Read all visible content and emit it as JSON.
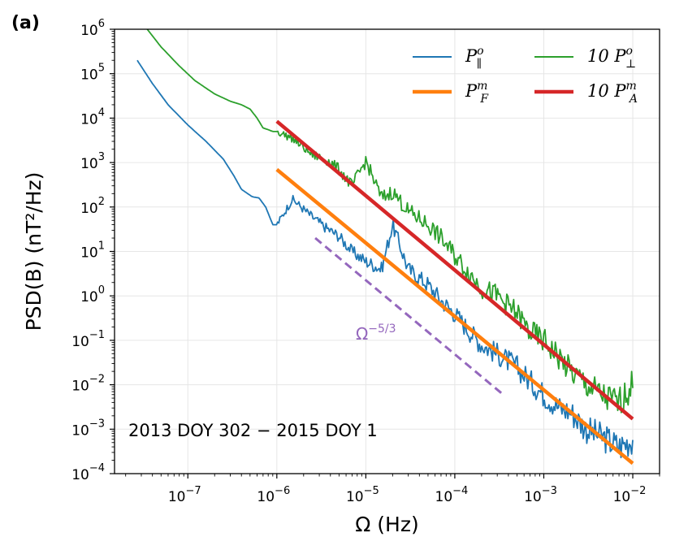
{
  "chart_data": {
    "type": "line",
    "panel_label": "(a)",
    "xlabel": "Ω (Hz)",
    "ylabel": "PSD(B) (nT²/Hz)",
    "x_scale": "log",
    "y_scale": "log",
    "xlim": [
      1.5e-08,
      0.02
    ],
    "ylim": [
      0.0001,
      1000000
    ],
    "grid": true,
    "legend_position": "top-right",
    "x_ticks": [
      {
        "value": 1e-07,
        "base": "10",
        "exp": "−7"
      },
      {
        "value": 1e-06,
        "base": "10",
        "exp": "−6"
      },
      {
        "value": 1e-05,
        "base": "10",
        "exp": "−5"
      },
      {
        "value": 0.0001,
        "base": "10",
        "exp": "−4"
      },
      {
        "value": 0.001,
        "base": "10",
        "exp": "−3"
      },
      {
        "value": 0.01,
        "base": "10",
        "exp": "−2"
      }
    ],
    "y_ticks": [
      {
        "value": 0.0001,
        "base": "10",
        "exp": "−4"
      },
      {
        "value": 0.001,
        "base": "10",
        "exp": "−3"
      },
      {
        "value": 0.01,
        "base": "10",
        "exp": "−2"
      },
      {
        "value": 0.1,
        "base": "10",
        "exp": "−1"
      },
      {
        "value": 1,
        "base": "10",
        "exp": "0"
      },
      {
        "value": 10,
        "base": "10",
        "exp": "1"
      },
      {
        "value": 100,
        "base": "10",
        "exp": "2"
      },
      {
        "value": 1000,
        "base": "10",
        "exp": "3"
      },
      {
        "value": 10000,
        "base": "10",
        "exp": "4"
      },
      {
        "value": 100000,
        "base": "10",
        "exp": "5"
      },
      {
        "value": 1000000,
        "base": "10",
        "exp": "6"
      }
    ],
    "series": [
      {
        "name": "P∥°",
        "legend": "P",
        "legend_sup": "o",
        "legend_sub": "∥",
        "color": "#1f77b4",
        "style": "thin",
        "x": [
          2.7e-08,
          4e-08,
          6e-08,
          1e-07,
          1.6e-07,
          2.5e-07,
          3.3e-07,
          4e-07,
          5.3e-07,
          6.3e-07,
          7.5e-07,
          9e-07,
          1e-06,
          1.5e-06,
          2.5e-06,
          3.5e-06,
          5e-06,
          7e-06,
          1e-05,
          1.5e-05,
          2e-05,
          3e-05,
          5e-05,
          7e-05,
          0.0001,
          0.00015,
          0.0002,
          0.0003,
          0.0005,
          0.0007,
          0.001,
          0.0015,
          0.002,
          0.003,
          0.005,
          0.007,
          0.01
        ],
        "y": [
          200000,
          60000,
          20000,
          7000,
          3000,
          1200,
          500,
          250,
          170,
          160,
          100,
          40,
          40,
          150,
          60,
          35,
          22,
          10,
          6,
          4,
          40,
          4,
          1.8,
          0.8,
          0.4,
          0.15,
          0.08,
          0.05,
          0.025,
          0.012,
          0.006,
          0.003,
          0.0025,
          0.001,
          0.0006,
          0.0004,
          0.0006
        ]
      },
      {
        "name": "P_F^m",
        "legend": "P",
        "legend_sup": "m",
        "legend_sub": "F",
        "color": "#ff7f0e",
        "style": "thick",
        "x": [
          1e-06,
          0.01
        ],
        "y": [
          700,
          0.00017
        ]
      },
      {
        "name": "10 P⊥°",
        "legend": "10 P",
        "legend_sup": "o",
        "legend_sub": "⊥",
        "color": "#2ca02c",
        "style": "thin",
        "x": [
          3.5e-08,
          5e-08,
          8e-08,
          1.2e-07,
          2e-07,
          3e-07,
          4e-07,
          5e-07,
          6e-07,
          7e-07,
          8e-07,
          9e-07,
          1e-06,
          1.5e-06,
          2.5e-06,
          3.5e-06,
          5e-06,
          7e-06,
          1e-05,
          1.5e-05,
          2e-05,
          3e-05,
          5e-05,
          7e-05,
          0.0001,
          0.00015,
          0.0002,
          0.0003,
          0.0005,
          0.0007,
          0.001,
          0.0015,
          0.002,
          0.003,
          0.005,
          0.007,
          0.01
        ],
        "y": [
          1000000,
          400000,
          150000,
          70000,
          35000,
          24000,
          20000,
          16000,
          10000,
          6000,
          5500,
          5000,
          5000,
          3500,
          1500,
          1200,
          700,
          300,
          1100,
          160,
          220,
          80,
          40,
          20,
          8,
          3,
          1.5,
          1,
          0.4,
          0.15,
          0.1,
          0.04,
          0.02,
          0.01,
          0.005,
          0.004,
          0.01
        ]
      },
      {
        "name": "10 P_A^m",
        "legend": "10 P",
        "legend_sup": "m",
        "legend_sub": "A",
        "color": "#d62728",
        "style": "thick",
        "x": [
          1e-06,
          0.01
        ],
        "y": [
          8500,
          0.0017
        ]
      }
    ],
    "reference_line": {
      "label_base": "Ω",
      "label_exp": "−5/3",
      "color": "#9467bd",
      "x": [
        2.7e-06,
        0.00035
      ],
      "y": [
        20,
        0.006
      ]
    },
    "annotation": "2013 DOY 302 − 2015 DOY 1"
  }
}
